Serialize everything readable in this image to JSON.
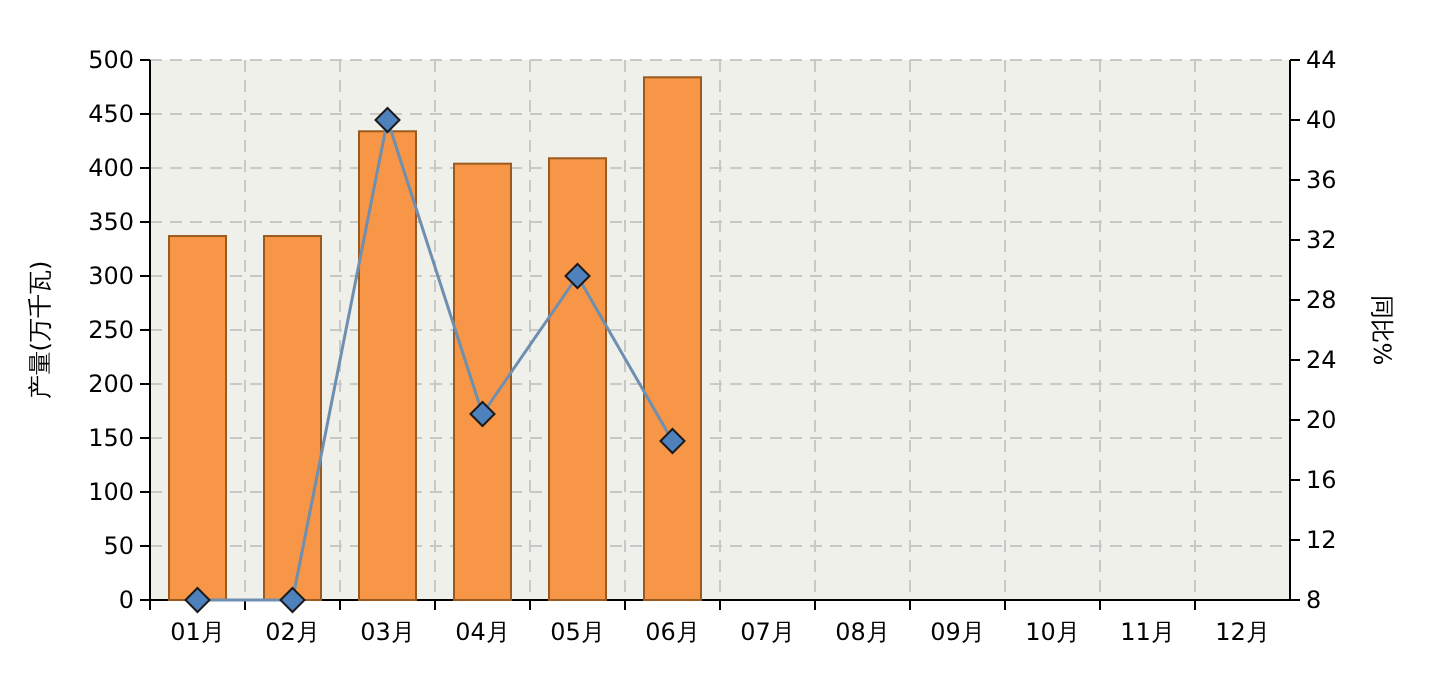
{
  "chart_data": {
    "type": "bar",
    "categories": [
      "01月",
      "02月",
      "03月",
      "04月",
      "05月",
      "06月",
      "07月",
      "08月",
      "09月",
      "10月",
      "11月",
      "12月"
    ],
    "ylabel": "产量(万千瓦)",
    "y2label": "同比%",
    "ylim": [
      0,
      500
    ],
    "yticks": [
      0,
      50,
      100,
      150,
      200,
      250,
      300,
      350,
      400,
      450,
      500
    ],
    "y2lim": [
      8,
      44
    ],
    "y2ticks": [
      8,
      12,
      16,
      20,
      24,
      28,
      32,
      36,
      40,
      44
    ],
    "grid": true,
    "series": [
      {
        "color": "#f79646",
        "values": [
          337,
          337,
          434,
          404,
          409,
          484,
          null,
          null,
          null,
          null,
          null,
          null
        ]
      },
      {
        "type": "line",
        "axis": "y2",
        "color": "#4f81bd",
        "marker": "diamond",
        "values": [
          8,
          8,
          40,
          20.4,
          29.6,
          18.6,
          null,
          null,
          null,
          null,
          null,
          null
        ]
      }
    ]
  }
}
